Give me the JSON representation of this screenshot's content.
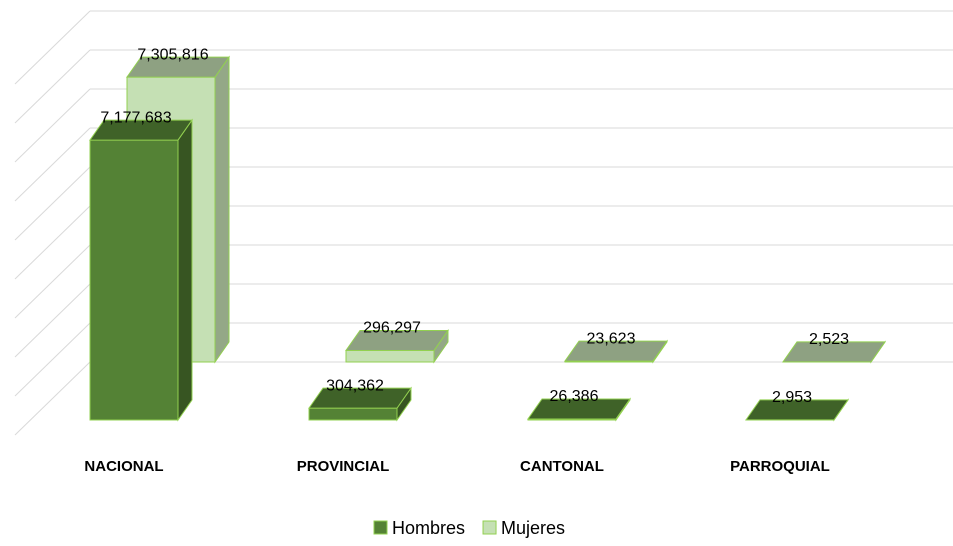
{
  "chart_data": {
    "type": "bar3d",
    "categories": [
      "NACIONAL",
      "PROVINCIAL",
      "CANTONAL",
      "PARROQUIAL"
    ],
    "series": [
      {
        "name": "Hombres",
        "color": "#548235",
        "values": [
          7177683,
          304362,
          26386,
          2953
        ],
        "value_labels": [
          "7,177,683",
          "304,362",
          "26,386",
          "2,953"
        ]
      },
      {
        "name": "Mujeres",
        "color": "#c5e0b4",
        "values": [
          7305816,
          296297,
          23623,
          2523
        ],
        "value_labels": [
          "7,305,816",
          "296,297",
          "23,623",
          "2,523"
        ]
      }
    ],
    "ylim": [
      0,
      9000000
    ],
    "yticks": [
      0,
      1000000,
      2000000,
      3000000,
      4000000,
      5000000,
      6000000,
      7000000,
      8000000,
      9000000
    ],
    "grid": true,
    "legend": "bottom"
  }
}
